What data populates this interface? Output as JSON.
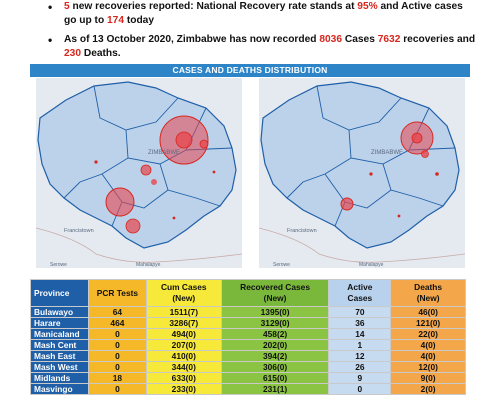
{
  "bullets": [
    {
      "parts": [
        {
          "text": "5",
          "red": true
        },
        {
          "text": " new recoveries reported: National Recovery rate stands at ",
          "red": false
        },
        {
          "text": "95%",
          "red": true
        },
        {
          "text": " and Active cases go up to ",
          "red": false
        },
        {
          "text": "174",
          "red": true
        },
        {
          "text": " today",
          "red": false
        }
      ]
    },
    {
      "parts": [
        {
          "text": "As of 13 October 2020, Zimbabwe has now recorded ",
          "red": false
        },
        {
          "text": "8036",
          "red": true
        },
        {
          "text": " Cases ",
          "red": false
        },
        {
          "text": "7632",
          "red": true
        },
        {
          "text": " recoveries and ",
          "red": false
        },
        {
          "text": "230",
          "red": true
        },
        {
          "text": " Deaths.",
          "red": false
        }
      ]
    }
  ],
  "banner": {
    "title": "CASES AND DEATHS DISTRIBUTION"
  },
  "maps": {
    "left": {
      "country_label": "ZIMBABWE",
      "city_label": "Francistown",
      "town_label": "Serowe",
      "town_label_2": "Mahalapye"
    },
    "right": {
      "country_label": "ZIMBABWE",
      "city_label": "Francistown",
      "town_label": "Serowe",
      "town_label_2": "Mahalapye"
    }
  },
  "colors": {
    "banner": "#2d84c6",
    "highlight_red": "#d7261e",
    "bubble": "#e8464e",
    "province_header": "#1f5fa8",
    "pcr": "#f5b829",
    "cum": "#f7e93a",
    "recovered": "#8bc443",
    "active": "#c7dbf0",
    "deaths": "#f3a64a"
  },
  "table": {
    "headers": {
      "province": "Province",
      "pcr": "PCR Tests",
      "cum_line1": "Cum Cases",
      "cum_line2": "(New)",
      "rec_line1": "Recovered Cases",
      "rec_line2": "(New)",
      "act_line1": "Active",
      "act_line2": "Cases",
      "dea_line1": "Deaths",
      "dea_line2": "(New)"
    },
    "rows": [
      {
        "province": "Bulawayo",
        "pcr": "64",
        "cum": "1511(7)",
        "rec": "1395(0)",
        "act": "70",
        "dea": "46(0)"
      },
      {
        "province": "Harare",
        "pcr": "464",
        "cum": "3286(7)",
        "rec": "3129(0)",
        "act": "36",
        "dea": "121(0)"
      },
      {
        "province": "Manicaland",
        "pcr": "0",
        "cum": "494(0)",
        "rec": "458(2)",
        "act": "14",
        "dea": "22(0)"
      },
      {
        "province": "Mash Cent",
        "pcr": "0",
        "cum": "207(0)",
        "rec": "202(0)",
        "act": "1",
        "dea": "4(0)"
      },
      {
        "province": "Mash East",
        "pcr": "0",
        "cum": "410(0)",
        "rec": "394(2)",
        "act": "12",
        "dea": "4(0)"
      },
      {
        "province": "Mash West",
        "pcr": "0",
        "cum": "344(0)",
        "rec": "306(0)",
        "act": "26",
        "dea": "12(0)"
      },
      {
        "province": "Midlands",
        "pcr": "18",
        "cum": "633(0)",
        "rec": "615(0)",
        "act": "9",
        "dea": "9(0)"
      },
      {
        "province": "Masvingo",
        "pcr": "0",
        "cum": "233(0)",
        "rec": "231(1)",
        "act": "0",
        "dea": "2(0)"
      }
    ]
  }
}
